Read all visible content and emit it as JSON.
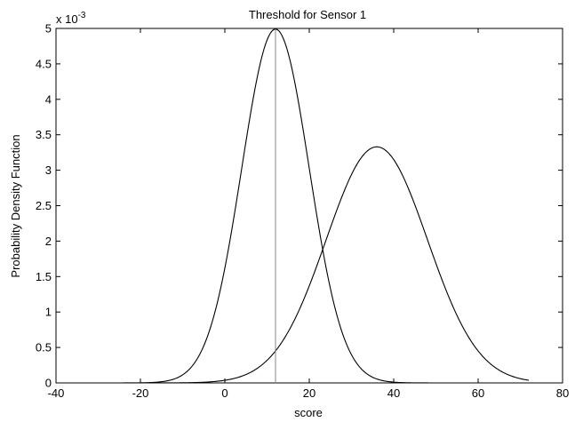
{
  "chart_data": {
    "type": "line",
    "title": "Threshold for Sensor 1",
    "xlabel": "score",
    "ylabel": "Probability Density Function",
    "y_scale_label": "x 10",
    "y_scale_exponent": "-3",
    "xlim": [
      -40,
      80
    ],
    "ylim": [
      0,
      5
    ],
    "x_ticks": [
      -40,
      -20,
      0,
      20,
      40,
      60,
      80
    ],
    "x_tick_labels": [
      "-40",
      "-20",
      "0",
      "20",
      "40",
      "60",
      "80"
    ],
    "y_ticks": [
      0,
      0.5,
      1,
      1.5,
      2,
      2.5,
      3,
      3.5,
      4,
      4.5,
      5
    ],
    "y_tick_labels": [
      "0",
      "0.5",
      "1",
      "1.5",
      "2",
      "2.5",
      "3",
      "3.5",
      "4",
      "4.5",
      "5"
    ],
    "grid": false,
    "x_domain": [
      -24,
      72
    ],
    "series": [
      {
        "distribution": "gaussian",
        "mean": 12,
        "std": 8,
        "peak": 4.99
      },
      {
        "distribution": "gaussian",
        "mean": 36,
        "std": 12,
        "peak": 3.33
      }
    ],
    "threshold_x": 12,
    "threshold_y": 4.99,
    "colors": {
      "curves": "#000000",
      "threshold": "#888888"
    }
  }
}
